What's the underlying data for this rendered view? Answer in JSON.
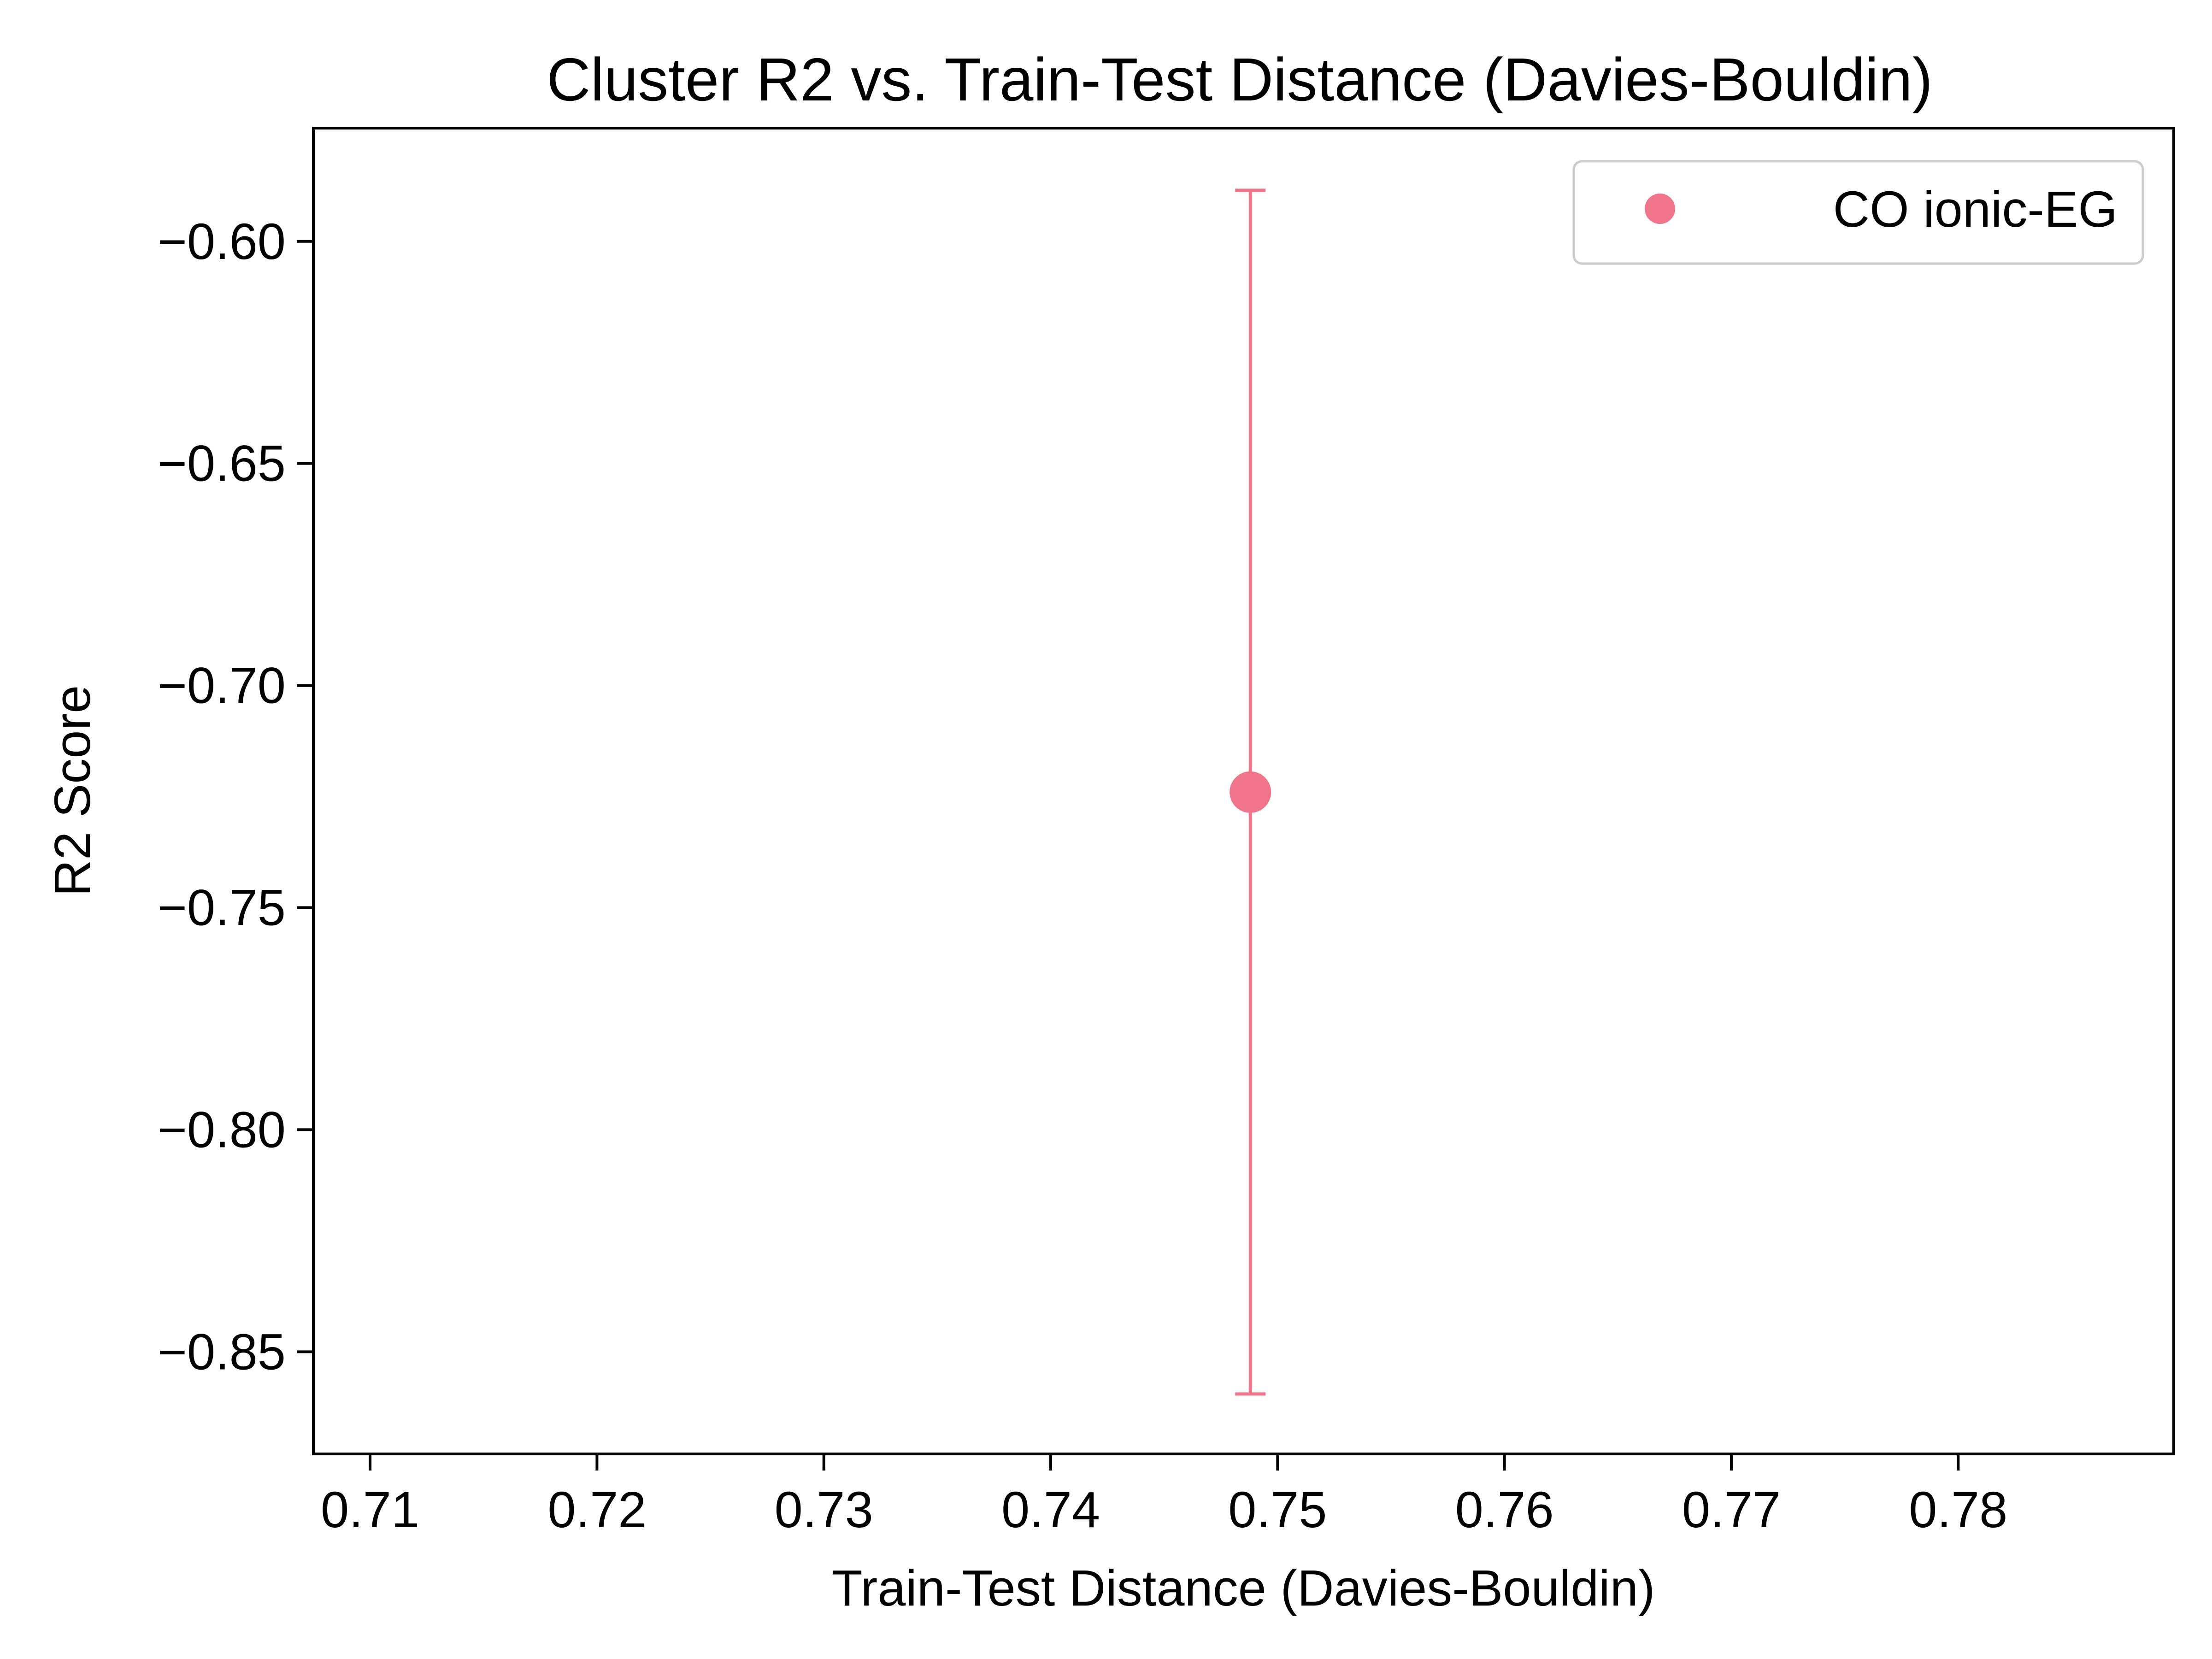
{
  "chart_data": {
    "type": "scatter",
    "title": "Cluster R2 vs. Train-Test Distance (Davies-Bouldin)",
    "xlabel": "Train-Test Distance (Davies-Bouldin)",
    "ylabel": "R2 Score",
    "xlim": [
      0.7075,
      0.7895
    ],
    "ylim": [
      -0.873,
      -0.5745
    ],
    "x_ticks": [
      0.71,
      0.72,
      0.73,
      0.74,
      0.75,
      0.76,
      0.77,
      0.78
    ],
    "x_tick_labels": [
      "0.71",
      "0.72",
      "0.73",
      "0.74",
      "0.75",
      "0.76",
      "0.77",
      "0.78"
    ],
    "y_ticks": [
      -0.6,
      -0.65,
      -0.7,
      -0.75,
      -0.8,
      -0.85
    ],
    "y_tick_labels": [
      "−0.60",
      "−0.65",
      "−0.70",
      "−0.75",
      "−0.80",
      "−0.85"
    ],
    "grid": false,
    "legend_position": "top-right",
    "series": [
      {
        "name": "CO ionic-EG",
        "color": "#f0758b",
        "points": [
          {
            "x": 0.7488,
            "y": -0.724,
            "y_err_low": -0.8595,
            "y_err_high": -0.5885
          }
        ]
      }
    ]
  }
}
